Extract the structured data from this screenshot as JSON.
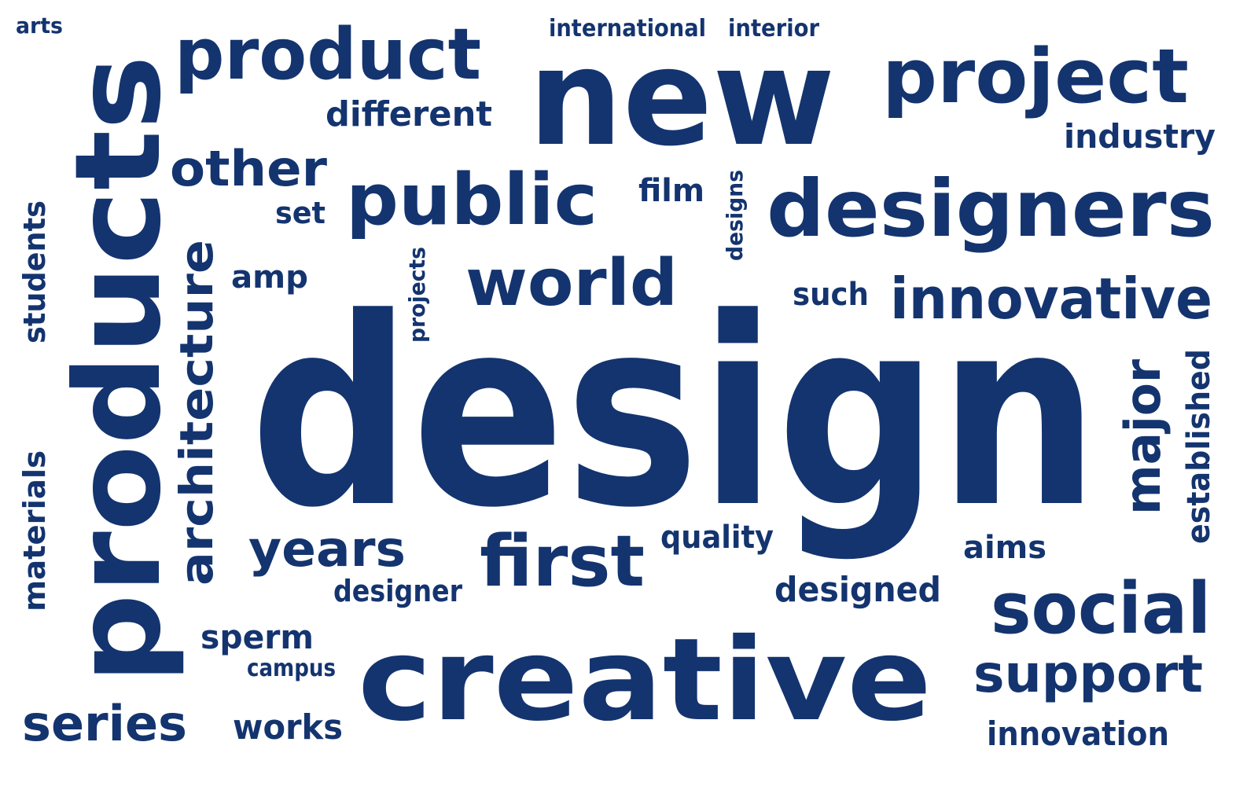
{
  "word_color": "#14346f",
  "background_color": "#ffffff",
  "words": {
    "design": "design",
    "products": "products",
    "new": "new",
    "creative": "creative",
    "designers": "designers",
    "project": "project",
    "product": "product",
    "public": "public",
    "innovative": "innovative",
    "world": "world",
    "social": "social",
    "first": "first",
    "support": "support",
    "architecture": "architecture",
    "other": "other",
    "major": "major",
    "years": "years",
    "series": "series",
    "industry": "industry",
    "different": "different",
    "designed": "designed",
    "innovation": "innovation",
    "established": "established",
    "quality": "quality",
    "students": "students",
    "materials": "materials",
    "works": "works",
    "sperm": "sperm",
    "designer": "designer",
    "aims": "aims",
    "such": "such",
    "film": "film",
    "amp": "amp",
    "set": "set",
    "international": "international",
    "interior": "interior",
    "arts": "arts",
    "designs": "designs",
    "projects": "projects",
    "campus": "campus"
  }
}
